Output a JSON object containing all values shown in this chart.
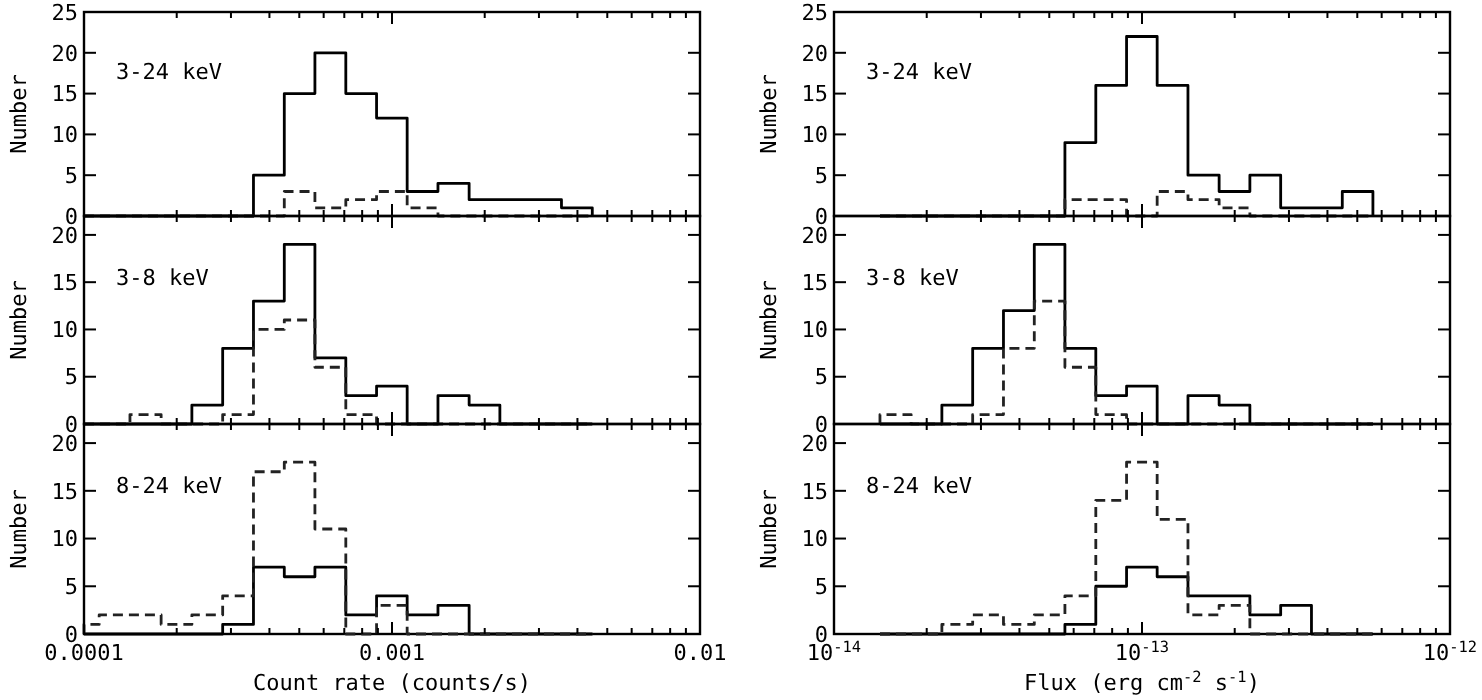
{
  "chart_data": [
    {
      "type": "histogram",
      "log": "x",
      "tick_labels": "y",
      "ylabel": "Number",
      "annotations": [
        "3-24 keV"
      ],
      "bins": [
        0.0001,
        0.000112,
        0.000141,
        0.000178,
        0.000224,
        0.000282,
        0.000355,
        0.000447,
        0.000562,
        0.000708,
        0.000891,
        0.00112,
        0.00141,
        0.00178,
        0.00224,
        0.00282,
        0.00355,
        0.00447
      ],
      "series": [
        {
          "color": "#000000",
          "line_style": "solid",
          "values": [
            0,
            0,
            0,
            0,
            0,
            0,
            5,
            15,
            20,
            15,
            12,
            3,
            4,
            2,
            2,
            2,
            1
          ]
        },
        {
          "color": "#222222",
          "line_style": "dashed",
          "values": [
            0,
            0,
            0,
            0,
            0,
            0,
            0,
            3,
            1,
            2,
            3,
            1,
            0,
            0,
            0,
            0,
            0
          ]
        }
      ],
      "xlim": [
        0.0001,
        0.01
      ],
      "xticks": [
        {
          "value": 0.0001,
          "label": null
        },
        {
          "value": 0.0002,
          "label": null
        },
        {
          "value": 0.0003,
          "label": null
        },
        {
          "value": 0.0004,
          "label": null
        },
        {
          "value": 0.0005,
          "label": null
        },
        {
          "value": 0.0006,
          "label": null
        },
        {
          "value": 0.0007,
          "label": null
        },
        {
          "value": 0.0008,
          "label": null
        },
        {
          "value": 0.0009,
          "label": null
        },
        {
          "value": 0.001,
          "label": null
        },
        {
          "value": 0.002,
          "label": null
        },
        {
          "value": 0.003,
          "label": null
        },
        {
          "value": 0.004,
          "label": null
        },
        {
          "value": 0.005,
          "label": null
        },
        {
          "value": 0.006,
          "label": null
        },
        {
          "value": 0.007,
          "label": null
        },
        {
          "value": 0.008,
          "label": null
        },
        {
          "value": 0.009,
          "label": null
        },
        {
          "value": 0.01,
          "label": null
        }
      ],
      "ylim": [
        0,
        25
      ],
      "yticks": [
        0,
        5,
        10,
        15,
        20,
        25
      ]
    },
    {
      "type": "histogram",
      "log": "x",
      "tick_labels": "y",
      "ylabel": "Number",
      "annotations": [
        "3-24 keV"
      ],
      "bins": [
        1.41e-14,
        1.78e-14,
        2.24e-14,
        2.82e-14,
        3.55e-14,
        4.47e-14,
        5.62e-14,
        7.08e-14,
        8.91e-14,
        1.12e-13,
        1.41e-13,
        1.78e-13,
        2.24e-13,
        2.82e-13,
        3.55e-13,
        4.47e-13,
        5.62e-13
      ],
      "series": [
        {
          "color": "#000000",
          "line_style": "solid",
          "values": [
            0,
            0,
            0,
            0,
            0,
            0,
            9,
            16,
            22,
            16,
            5,
            3,
            5,
            1,
            1,
            3
          ]
        },
        {
          "color": "#222222",
          "line_style": "dashed",
          "values": [
            0,
            0,
            0,
            0,
            0,
            0,
            2,
            2,
            0,
            3,
            2,
            1,
            0,
            0,
            0,
            0
          ]
        }
      ],
      "xlim": [
        1e-14,
        1e-12
      ],
      "xticks": [
        {
          "value": 1e-14,
          "label": null
        },
        {
          "value": 2e-14,
          "label": null
        },
        {
          "value": 3e-14,
          "label": null
        },
        {
          "value": 4e-14,
          "label": null
        },
        {
          "value": 5e-14,
          "label": null
        },
        {
          "value": 6e-14,
          "label": null
        },
        {
          "value": 7e-14,
          "label": null
        },
        {
          "value": 8e-14,
          "label": null
        },
        {
          "value": 9e-14,
          "label": null
        },
        {
          "value": 1e-13,
          "label": null
        },
        {
          "value": 2e-13,
          "label": null
        },
        {
          "value": 3e-13,
          "label": null
        },
        {
          "value": 4e-13,
          "label": null
        },
        {
          "value": 5e-13,
          "label": null
        },
        {
          "value": 6e-13,
          "label": null
        },
        {
          "value": 7e-13,
          "label": null
        },
        {
          "value": 8e-13,
          "label": null
        },
        {
          "value": 9e-13,
          "label": null
        },
        {
          "value": 1e-12,
          "label": null
        }
      ],
      "ylim": [
        0,
        25
      ],
      "yticks": [
        0,
        5,
        10,
        15,
        20,
        25
      ]
    },
    {
      "type": "histogram",
      "log": "x",
      "tick_labels": "y",
      "ylabel": "Number",
      "annotations": [
        "3-8 keV"
      ],
      "bins": [
        0.0001,
        0.000112,
        0.000141,
        0.000178,
        0.000224,
        0.000282,
        0.000355,
        0.000447,
        0.000562,
        0.000708,
        0.000891,
        0.00112,
        0.00141,
        0.00178,
        0.00224,
        0.00282,
        0.00355,
        0.00447
      ],
      "series": [
        {
          "color": "#000000",
          "line_style": "solid",
          "values": [
            0,
            0,
            0,
            0,
            2,
            8,
            13,
            19,
            7,
            3,
            4,
            0,
            3,
            2,
            0,
            0,
            0
          ]
        },
        {
          "color": "#222222",
          "line_style": "dashed",
          "values": [
            0,
            0,
            1,
            0,
            0,
            1,
            10,
            11,
            6,
            1,
            0,
            0,
            0,
            0,
            0,
            0,
            0
          ]
        }
      ],
      "xlim": [
        0.0001,
        0.01
      ],
      "xticks": [
        {
          "value": 0.0001,
          "label": null
        },
        {
          "value": 0.0002,
          "label": null
        },
        {
          "value": 0.0003,
          "label": null
        },
        {
          "value": 0.0004,
          "label": null
        },
        {
          "value": 0.0005,
          "label": null
        },
        {
          "value": 0.0006,
          "label": null
        },
        {
          "value": 0.0007,
          "label": null
        },
        {
          "value": 0.0008,
          "label": null
        },
        {
          "value": 0.0009,
          "label": null
        },
        {
          "value": 0.001,
          "label": null
        },
        {
          "value": 0.002,
          "label": null
        },
        {
          "value": 0.003,
          "label": null
        },
        {
          "value": 0.004,
          "label": null
        },
        {
          "value": 0.005,
          "label": null
        },
        {
          "value": 0.006,
          "label": null
        },
        {
          "value": 0.007,
          "label": null
        },
        {
          "value": 0.008,
          "label": null
        },
        {
          "value": 0.009,
          "label": null
        },
        {
          "value": 0.01,
          "label": null
        }
      ],
      "ylim": [
        0,
        22
      ],
      "yticks": [
        0,
        5,
        10,
        15,
        20
      ]
    },
    {
      "type": "histogram",
      "log": "x",
      "tick_labels": "y",
      "ylabel": "Number",
      "annotations": [
        "3-8 keV"
      ],
      "bins": [
        1.41e-14,
        1.78e-14,
        2.24e-14,
        2.82e-14,
        3.55e-14,
        4.47e-14,
        5.62e-14,
        7.08e-14,
        8.91e-14,
        1.12e-13,
        1.41e-13,
        1.78e-13,
        2.24e-13,
        2.82e-13,
        3.55e-13,
        4.47e-13,
        5.62e-13
      ],
      "series": [
        {
          "color": "#000000",
          "line_style": "solid",
          "values": [
            0,
            0,
            2,
            8,
            12,
            19,
            8,
            3,
            4,
            0,
            3,
            2,
            0,
            0,
            0,
            0
          ]
        },
        {
          "color": "#222222",
          "line_style": "dashed",
          "values": [
            1,
            0,
            0,
            1,
            8,
            13,
            6,
            1,
            0,
            0,
            0,
            0,
            0,
            0,
            0,
            0
          ]
        }
      ],
      "xlim": [
        1e-14,
        1e-12
      ],
      "xticks": [
        {
          "value": 1e-14,
          "label": null
        },
        {
          "value": 2e-14,
          "label": null
        },
        {
          "value": 3e-14,
          "label": null
        },
        {
          "value": 4e-14,
          "label": null
        },
        {
          "value": 5e-14,
          "label": null
        },
        {
          "value": 6e-14,
          "label": null
        },
        {
          "value": 7e-14,
          "label": null
        },
        {
          "value": 8e-14,
          "label": null
        },
        {
          "value": 9e-14,
          "label": null
        },
        {
          "value": 1e-13,
          "label": null
        },
        {
          "value": 2e-13,
          "label": null
        },
        {
          "value": 3e-13,
          "label": null
        },
        {
          "value": 4e-13,
          "label": null
        },
        {
          "value": 5e-13,
          "label": null
        },
        {
          "value": 6e-13,
          "label": null
        },
        {
          "value": 7e-13,
          "label": null
        },
        {
          "value": 8e-13,
          "label": null
        },
        {
          "value": 9e-13,
          "label": null
        },
        {
          "value": 1e-12,
          "label": null
        }
      ],
      "ylim": [
        0,
        22
      ],
      "yticks": [
        0,
        5,
        10,
        15,
        20
      ]
    },
    {
      "type": "histogram",
      "log": "x",
      "xlabel": "Count rate (counts/s)",
      "ylabel": "Number",
      "annotations": [
        "8-24 keV"
      ],
      "bins": [
        0.0001,
        0.000112,
        0.000141,
        0.000178,
        0.000224,
        0.000282,
        0.000355,
        0.000447,
        0.000562,
        0.000708,
        0.000891,
        0.00112,
        0.00141,
        0.00178,
        0.00224,
        0.00282,
        0.00355,
        0.00447
      ],
      "series": [
        {
          "color": "#000000",
          "line_style": "solid",
          "values": [
            0,
            0,
            0,
            0,
            0,
            1,
            7,
            6,
            7,
            2,
            4,
            2,
            3,
            0,
            0,
            0,
            0
          ]
        },
        {
          "color": "#222222",
          "line_style": "dashed",
          "values": [
            1,
            2,
            2,
            1,
            2,
            4,
            17,
            18,
            11,
            0,
            3,
            0,
            0,
            0,
            0,
            0,
            0
          ]
        }
      ],
      "xlim": [
        0.0001,
        0.01
      ],
      "xticks": [
        {
          "value": 0.0001,
          "label": "0.0001"
        },
        {
          "value": 0.0002,
          "label": null
        },
        {
          "value": 0.0003,
          "label": null
        },
        {
          "value": 0.0004,
          "label": null
        },
        {
          "value": 0.0005,
          "label": null
        },
        {
          "value": 0.0006,
          "label": null
        },
        {
          "value": 0.0007,
          "label": null
        },
        {
          "value": 0.0008,
          "label": null
        },
        {
          "value": 0.0009,
          "label": null
        },
        {
          "value": 0.001,
          "label": "0.001"
        },
        {
          "value": 0.002,
          "label": null
        },
        {
          "value": 0.003,
          "label": null
        },
        {
          "value": 0.004,
          "label": null
        },
        {
          "value": 0.005,
          "label": null
        },
        {
          "value": 0.006,
          "label": null
        },
        {
          "value": 0.007,
          "label": null
        },
        {
          "value": 0.008,
          "label": null
        },
        {
          "value": 0.009,
          "label": null
        },
        {
          "value": 0.01,
          "label": "0.01"
        }
      ],
      "ylim": [
        0,
        22
      ],
      "yticks": [
        0,
        5,
        10,
        15,
        20
      ]
    },
    {
      "type": "histogram",
      "log": "x",
      "xlabel": "Flux (erg cm$^{-2}$ s$^{-1}$)",
      "ylabel": "Number",
      "annotations": [
        "8-24 keV"
      ],
      "bins": [
        1.41e-14,
        1.78e-14,
        2.24e-14,
        2.82e-14,
        3.55e-14,
        4.47e-14,
        5.62e-14,
        7.08e-14,
        8.91e-14,
        1.12e-13,
        1.41e-13,
        1.78e-13,
        2.24e-13,
        2.82e-13,
        3.55e-13,
        4.47e-13,
        5.62e-13
      ],
      "series": [
        {
          "color": "#000000",
          "line_style": "solid",
          "values": [
            0,
            0,
            0,
            0,
            0,
            0,
            1,
            5,
            7,
            6,
            4,
            4,
            2,
            3,
            0,
            0
          ]
        },
        {
          "color": "#222222",
          "line_style": "dashed",
          "values": [
            0,
            0,
            1,
            2,
            1,
            2,
            4,
            14,
            18,
            12,
            2,
            3,
            0,
            0,
            0,
            0
          ]
        }
      ],
      "xlim": [
        1e-14,
        1e-12
      ],
      "xticks": [
        {
          "value": 1e-14,
          "label": "10$^{-14}$"
        },
        {
          "value": 2e-14,
          "label": null
        },
        {
          "value": 3e-14,
          "label": null
        },
        {
          "value": 4e-14,
          "label": null
        },
        {
          "value": 5e-14,
          "label": null
        },
        {
          "value": 6e-14,
          "label": null
        },
        {
          "value": 7e-14,
          "label": null
        },
        {
          "value": 8e-14,
          "label": null
        },
        {
          "value": 9e-14,
          "label": null
        },
        {
          "value": 1e-13,
          "label": "10$^{-13}$"
        },
        {
          "value": 2e-13,
          "label": null
        },
        {
          "value": 3e-13,
          "label": null
        },
        {
          "value": 4e-13,
          "label": null
        },
        {
          "value": 5e-13,
          "label": null
        },
        {
          "value": 6e-13,
          "label": null
        },
        {
          "value": 7e-13,
          "label": null
        },
        {
          "value": 8e-13,
          "label": null
        },
        {
          "value": 9e-13,
          "label": null
        },
        {
          "value": 1e-12,
          "label": "10$^{-12}$"
        }
      ],
      "ylim": [
        0,
        22
      ],
      "yticks": [
        0,
        5,
        10,
        15,
        20
      ]
    }
  ]
}
